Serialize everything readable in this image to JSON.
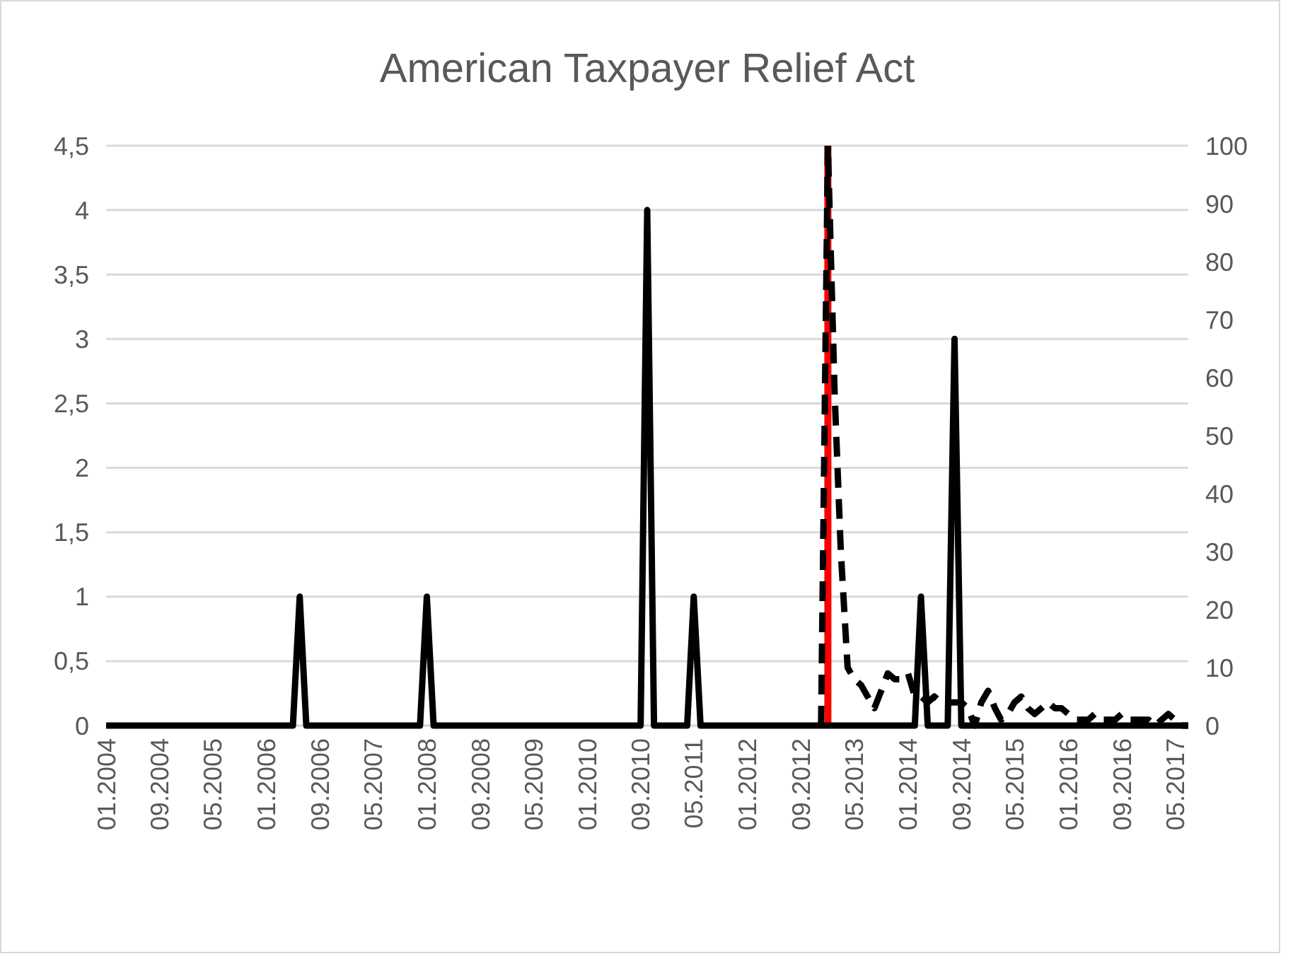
{
  "chart_data": {
    "type": "line",
    "title": "American Taxpayer Relief Act",
    "x": [
      "2004-01",
      "2004-02",
      "2004-03",
      "2004-04",
      "2004-05",
      "2004-06",
      "2004-07",
      "2004-08",
      "2004-09",
      "2004-10",
      "2004-11",
      "2004-12",
      "2005-01",
      "2005-02",
      "2005-03",
      "2005-04",
      "2005-05",
      "2005-06",
      "2005-07",
      "2005-08",
      "2005-09",
      "2005-10",
      "2005-11",
      "2005-12",
      "2006-01",
      "2006-02",
      "2006-03",
      "2006-04",
      "2006-05",
      "2006-06",
      "2006-07",
      "2006-08",
      "2006-09",
      "2006-10",
      "2006-11",
      "2006-12",
      "2007-01",
      "2007-02",
      "2007-03",
      "2007-04",
      "2007-05",
      "2007-06",
      "2007-07",
      "2007-08",
      "2007-09",
      "2007-10",
      "2007-11",
      "2007-12",
      "2008-01",
      "2008-02",
      "2008-03",
      "2008-04",
      "2008-05",
      "2008-06",
      "2008-07",
      "2008-08",
      "2008-09",
      "2008-10",
      "2008-11",
      "2008-12",
      "2009-01",
      "2009-02",
      "2009-03",
      "2009-04",
      "2009-05",
      "2009-06",
      "2009-07",
      "2009-08",
      "2009-09",
      "2009-10",
      "2009-11",
      "2009-12",
      "2010-01",
      "2010-02",
      "2010-03",
      "2010-04",
      "2010-05",
      "2010-06",
      "2010-07",
      "2010-08",
      "2010-09",
      "2010-10",
      "2010-11",
      "2010-12",
      "2011-01",
      "2011-02",
      "2011-03",
      "2011-04",
      "2011-05",
      "2011-06",
      "2011-07",
      "2011-08",
      "2011-09",
      "2011-10",
      "2011-11",
      "2011-12",
      "2012-01",
      "2012-02",
      "2012-03",
      "2012-04",
      "2012-05",
      "2012-06",
      "2012-07",
      "2012-08",
      "2012-09",
      "2012-10",
      "2012-11",
      "2012-12",
      "2013-01",
      "2013-02",
      "2013-03",
      "2013-04",
      "2013-05",
      "2013-06",
      "2013-07",
      "2013-08",
      "2013-09",
      "2013-10",
      "2013-11",
      "2013-12",
      "2014-01",
      "2014-02",
      "2014-03",
      "2014-04",
      "2014-05",
      "2014-06",
      "2014-07",
      "2014-08",
      "2014-09",
      "2014-10",
      "2014-11",
      "2014-12",
      "2015-01",
      "2015-02",
      "2015-03",
      "2015-04",
      "2015-05",
      "2015-06",
      "2015-07",
      "2015-08",
      "2015-09",
      "2015-10",
      "2015-11",
      "2015-12",
      "2016-01",
      "2016-02",
      "2016-03",
      "2016-04",
      "2016-05",
      "2016-06",
      "2016-07",
      "2016-08",
      "2016-09",
      "2016-10",
      "2016-11",
      "2016-12",
      "2017-01",
      "2017-02",
      "2017-03",
      "2017-04",
      "2017-05",
      "2017-06",
      "2017-07"
    ],
    "series": [
      {
        "color": "#000000",
        "line_style": "solid",
        "values": [
          0,
          0,
          0,
          0,
          0,
          0,
          0,
          0,
          0,
          0,
          0,
          0,
          0,
          0,
          0,
          0,
          0,
          0,
          0,
          0,
          0,
          0,
          0,
          0,
          0,
          0,
          0,
          0,
          0,
          1,
          0,
          0,
          0,
          0,
          0,
          0,
          0,
          0,
          0,
          0,
          0,
          0,
          0,
          0,
          0,
          0,
          0,
          0,
          1,
          0,
          0,
          0,
          0,
          0,
          0,
          0,
          0,
          0,
          0,
          0,
          0,
          0,
          0,
          0,
          0,
          0,
          0,
          0,
          0,
          0,
          0,
          0,
          0,
          0,
          0,
          0,
          0,
          0,
          0,
          0,
          0,
          4,
          0,
          0,
          0,
          0,
          0,
          0,
          1,
          0,
          0,
          0,
          0,
          0,
          0,
          0,
          0,
          0,
          0,
          0,
          0,
          0,
          0,
          0,
          0,
          0,
          0,
          0,
          0,
          0,
          0,
          0,
          0,
          0,
          0,
          0,
          0,
          0,
          0,
          0,
          0,
          0,
          1,
          0,
          0,
          0,
          0,
          3,
          0,
          0,
          0,
          0,
          0,
          0,
          0,
          0,
          0,
          0,
          0,
          0,
          0,
          0,
          0,
          0,
          0,
          0,
          0,
          0,
          0,
          0,
          0,
          0,
          0,
          0,
          0,
          0,
          0,
          0,
          0,
          0,
          0,
          0,
          0
        ]
      },
      {
        "color": "#000000",
        "line_style": "dashed",
        "axis": "y2",
        "x": [
          "2012-12",
          "2013-01",
          "2013-02",
          "2013-03",
          "2013-04",
          "2013-05",
          "2013-06",
          "2013-07",
          "2013-08",
          "2013-09",
          "2013-10",
          "2013-11",
          "2013-12",
          "2014-01",
          "2014-02",
          "2014-03",
          "2014-04",
          "2014-05",
          "2014-06",
          "2014-07",
          "2014-08",
          "2014-09",
          "2014-10",
          "2014-11",
          "2014-12",
          "2015-01",
          "2015-02",
          "2015-03",
          "2015-04",
          "2015-05",
          "2015-06",
          "2015-07",
          "2015-08",
          "2015-09",
          "2015-10",
          "2015-11",
          "2015-12",
          "2016-01",
          "2016-02",
          "2016-03",
          "2016-04",
          "2016-05",
          "2016-06",
          "2016-07",
          "2016-08",
          "2016-09",
          "2016-10",
          "2016-11",
          "2016-12",
          "2017-01",
          "2017-02",
          "2017-03",
          "2017-04",
          "2017-05",
          "2017-06",
          "2017-07"
        ],
        "values": [
          0,
          100,
          57,
          30,
          10,
          8,
          7,
          5,
          3,
          6,
          9,
          8,
          8,
          9,
          5,
          5,
          4,
          5,
          4,
          4,
          4,
          4,
          3,
          0,
          4,
          6,
          3,
          1,
          2,
          4,
          5,
          3,
          2,
          3,
          4,
          3,
          3,
          2,
          1,
          1,
          1,
          2,
          1,
          1,
          1,
          2,
          1,
          1,
          1,
          1,
          0,
          1,
          2,
          1,
          0,
          0
        ]
      }
    ],
    "xlim": [
      "2004-01",
      "2017-07"
    ],
    "xticks": [
      {
        "value": "2004-01",
        "label": "01.2004"
      },
      {
        "value": "2004-09",
        "label": "09.2004"
      },
      {
        "value": "2005-05",
        "label": "05.2005"
      },
      {
        "value": "2006-01",
        "label": "01.2006"
      },
      {
        "value": "2006-09",
        "label": "09.2006"
      },
      {
        "value": "2007-05",
        "label": "05.2007"
      },
      {
        "value": "2008-01",
        "label": "01.2008"
      },
      {
        "value": "2008-09",
        "label": "09.2008"
      },
      {
        "value": "2009-05",
        "label": "05.2009"
      },
      {
        "value": "2010-01",
        "label": "01.2010"
      },
      {
        "value": "2010-09",
        "label": "09.2010"
      },
      {
        "value": "2011-05",
        "label": "05.2011"
      },
      {
        "value": "2012-01",
        "label": "01.2012"
      },
      {
        "value": "2012-09",
        "label": "09.2012"
      },
      {
        "value": "2013-05",
        "label": "05.2013"
      },
      {
        "value": "2014-01",
        "label": "01.2014"
      },
      {
        "value": "2014-09",
        "label": "09.2014"
      },
      {
        "value": "2015-05",
        "label": "05.2015"
      },
      {
        "value": "2016-01",
        "label": "01.2016"
      },
      {
        "value": "2016-09",
        "label": "09.2016"
      },
      {
        "value": "2017-05",
        "label": "05.2017"
      }
    ],
    "ylim": [
      0,
      4.5
    ],
    "yticks": [
      0,
      {
        "value": 0.5,
        "label": "0,5"
      },
      1,
      {
        "value": 1.5,
        "label": "1,5"
      },
      2,
      {
        "value": 2.5,
        "label": "2,5"
      },
      3,
      {
        "value": 3.5,
        "label": "3,5"
      },
      4,
      {
        "value": 4.5,
        "label": "4,5"
      }
    ],
    "y2lim": [
      0,
      100
    ],
    "y2ticks": [
      0,
      10,
      20,
      30,
      40,
      50,
      60,
      70,
      80,
      90,
      100
    ],
    "ref_lines": [
      {
        "axis": "x",
        "value": "2013-01",
        "color": "#ff0000"
      }
    ],
    "grid": "y"
  }
}
